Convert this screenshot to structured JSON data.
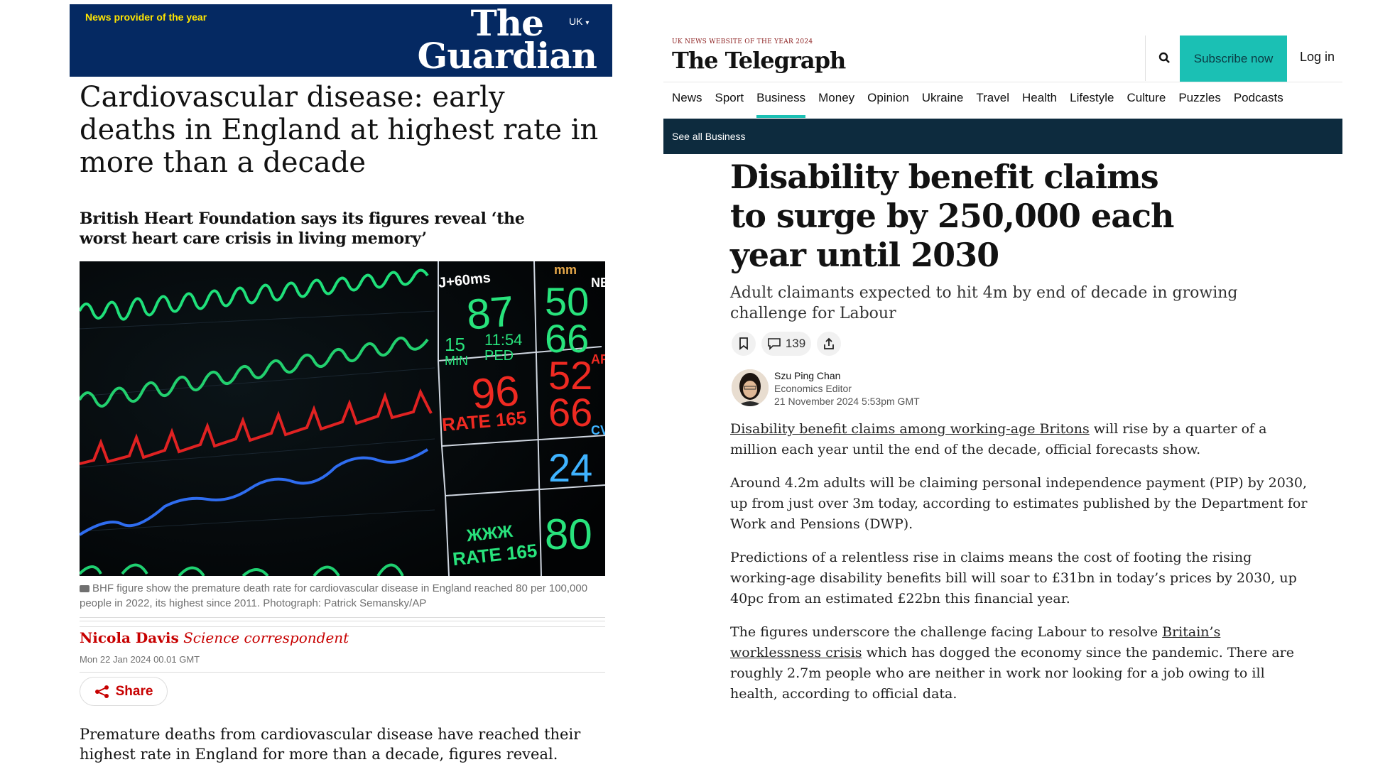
{
  "guardian": {
    "award": "News provider of the year",
    "edition": "UK",
    "logo_line1": "The",
    "logo_line2": "Guardian",
    "headline": "Cardiovascular disease: early deaths in England at highest rate in more than a decade",
    "standfirst": "British Heart Foundation says its figures reveal ‘the worst heart care crisis in living memory’",
    "image_readouts": {
      "top_label": "J+60ms",
      "mm": "mm",
      "hr": "87",
      "pressure_a": "50",
      "pressure_b": "66",
      "min_val": "15",
      "min_label": "MIN",
      "time": "11:54",
      "ped": "PED",
      "red_val": "96",
      "red_rate_label": "RATE 165",
      "red_a": "52",
      "red_b": "66",
      "blue_val": "24",
      "bottom_star": "ЖЖЖ",
      "bottom_rate_label": "RATE 165",
      "bottom_val": "80",
      "edge_ne": "NE",
      "edge_ar": "AR",
      "edge_cv": "CV"
    },
    "caption": "BHF figure show the premature death rate for cardiovascular disease in England reached 80 per 100,000 people in 2022, its highest since 2011. Photograph: Patrick Semansky/AP",
    "author_name": "Nicola Davis",
    "author_role": "Science correspondent",
    "date": "Mon 22 Jan 2024 00.01 GMT",
    "share_label": "Share",
    "body": "Premature deaths from cardiovascular disease have reached their highest rate in England for more than a decade, figures reveal."
  },
  "telegraph": {
    "award": "UK NEWS WEBSITE OF THE YEAR 2024",
    "logo": "The Telegraph",
    "subscribe_label": "Subscribe now",
    "login_label": "Log in",
    "nav": [
      "News",
      "Sport",
      "Business",
      "Money",
      "Opinion",
      "Ukraine",
      "Travel",
      "Health",
      "Lifestyle",
      "Culture",
      "Puzzles",
      "Podcasts"
    ],
    "nav_active": "Business",
    "subnav_label": "See all Business",
    "headline": "Disability benefit claims to surge by 250,000 each year until 2030",
    "standfirst": "Adult claimants expected to hit 4m by end of decade in growing challenge for Labour",
    "comment_count": "139",
    "author_name": "Szu Ping Chan",
    "author_role": "Economics Editor",
    "timestamp": "21 November 2024 5:53pm GMT",
    "p1_link": "Disability benefit claims among working-age Britons",
    "p1_rest": " will rise by a quarter of a million each year until the end of the decade, official forecasts show.",
    "p2": "Around 4.2m adults will be claiming personal independence payment (PIP) by 2030, up from just over 3m today, according to estimates published by the Department for Work and Pensions (DWP).",
    "p3": "Predictions of a relentless rise in claims means the cost of footing the rising working-age disability benefits bill will soar to £31bn in today’s prices by 2030, up 40pc from an estimated £22bn this financial year.",
    "p4_start": "The figures underscore the challenge facing Labour to resolve ",
    "p4_link": "Britain’s worklessness crisis",
    "p4_rest": " which has dogged the economy since the pandemic. There are roughly 2.7m people who are neither in work nor looking for a job owing to ill health, according to official data."
  },
  "colors": {
    "guardian_navy": "#052962",
    "guardian_yellow": "#ffe500",
    "guardian_red": "#c70000",
    "telegraph_teal": "#1bc0b4",
    "telegraph_dark": "#0d2b3e"
  }
}
